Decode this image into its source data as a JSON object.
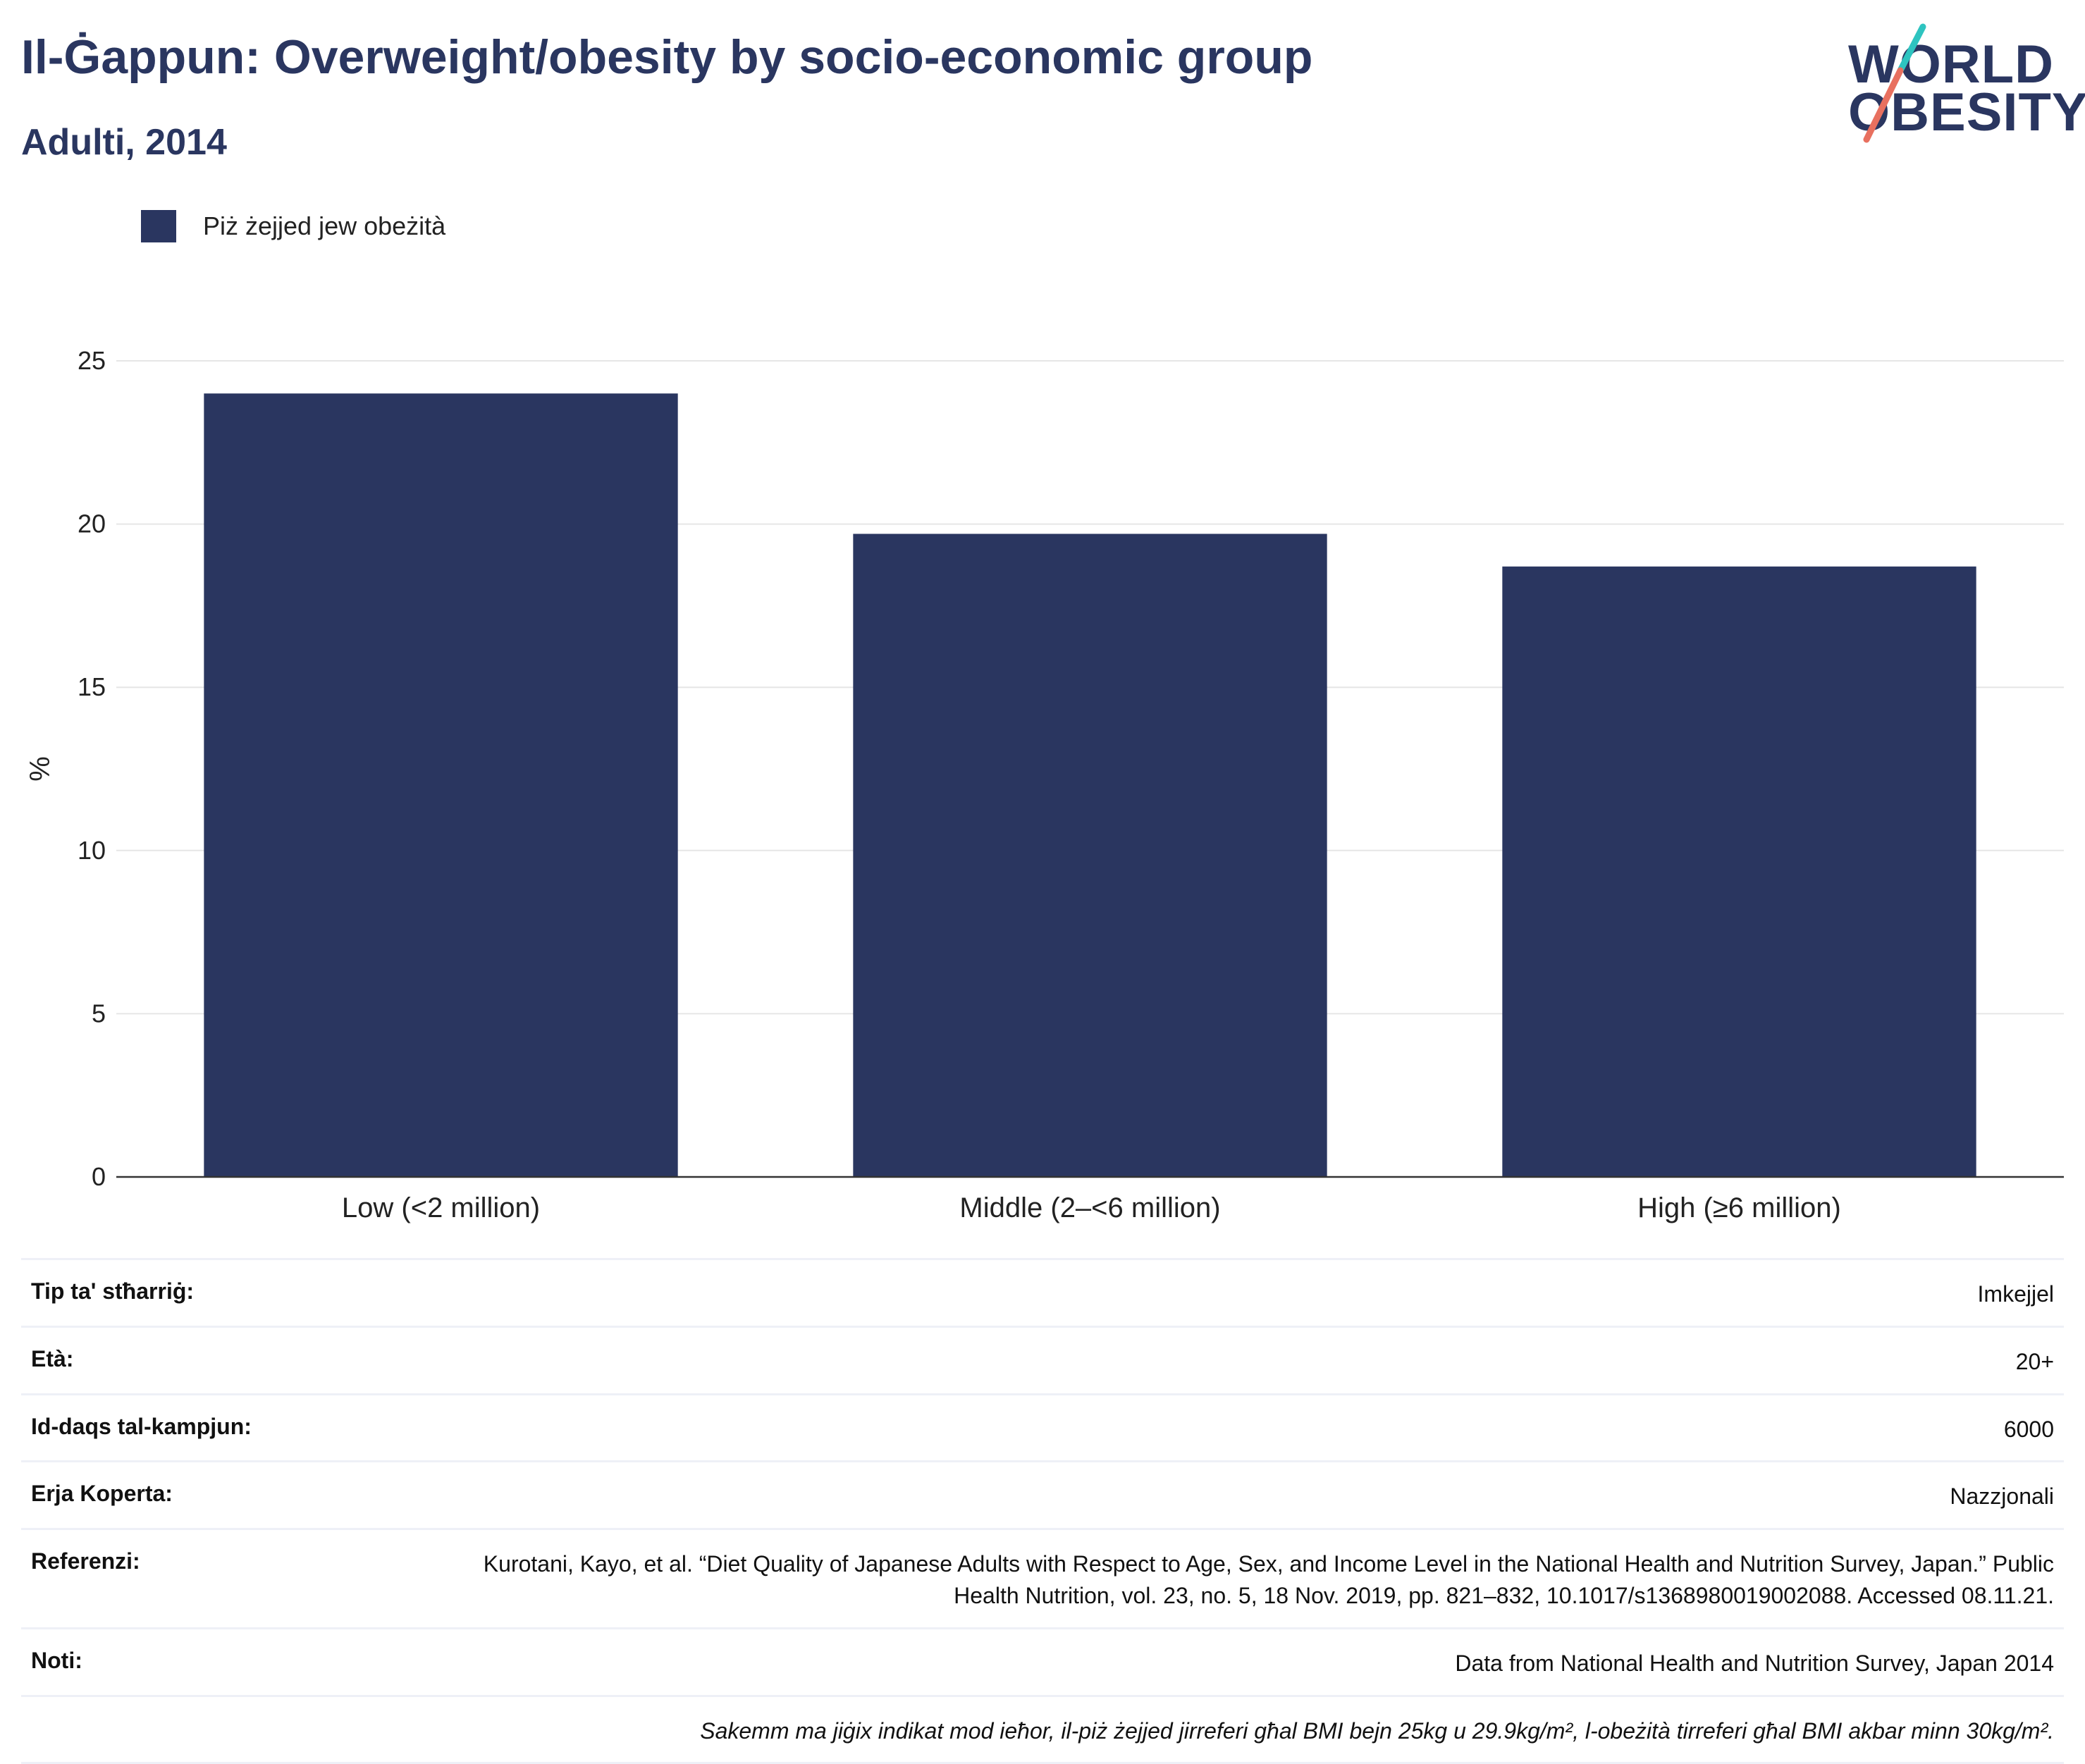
{
  "header": {
    "title": "Il-Ġappun: Overweight/obesity by socio-economic group",
    "subtitle": "Adulti, 2014"
  },
  "logo": {
    "line1": "WORLD",
    "line2": "OBESITY",
    "accent_teal": "#2ec4c0",
    "accent_coral": "#e8705f"
  },
  "colors": {
    "bar": "#2a3660",
    "text": "#2a3660",
    "grid": "#e6e6e6"
  },
  "legend": {
    "label": "Piż żejjed jew obeżità"
  },
  "chart_data": {
    "type": "bar",
    "categories": [
      "Low (<2 million)",
      "Middle (2–<6 million)",
      "High (≥6 million)"
    ],
    "series": [
      {
        "name": "Piż żejjed jew obeżità",
        "values": [
          24.0,
          19.7,
          18.7
        ]
      }
    ],
    "ylabel": "%",
    "xlabel": "",
    "ylim": [
      0,
      25
    ],
    "yticks": [
      0,
      5,
      10,
      15,
      20,
      25
    ],
    "grid": true,
    "legend_position": "top-left"
  },
  "table": {
    "rows": [
      {
        "label": "Tip ta' stħarriġ:",
        "value": "Imkejjel"
      },
      {
        "label": "Età:",
        "value": "20+"
      },
      {
        "label": "Id-daqs tal-kampjun:",
        "value": "6000"
      },
      {
        "label": "Erja Koperta:",
        "value": "Nazzjonali"
      },
      {
        "label": "Referenzi:",
        "value": "Kurotani, Kayo, et al. “Diet Quality of Japanese Adults with Respect to Age, Sex, and Income Level in the National Health and Nutrition Survey, Japan.” Public Health Nutrition, vol. 23, no. 5, 18 Nov. 2019, pp. 821–832, 10.1017/s1368980019002088. Accessed 08.11.21."
      },
      {
        "label": "Noti:",
        "value": "Data from National Health and Nutrition Survey, Japan 2014"
      }
    ],
    "footnote": "Sakemm ma jiġix indikat mod ieħor, il-piż żejjed jirreferi għal BMI bejn 25kg u 29.9kg/m², l-obeżità tirreferi għal BMI akbar minn 30kg/m²."
  }
}
